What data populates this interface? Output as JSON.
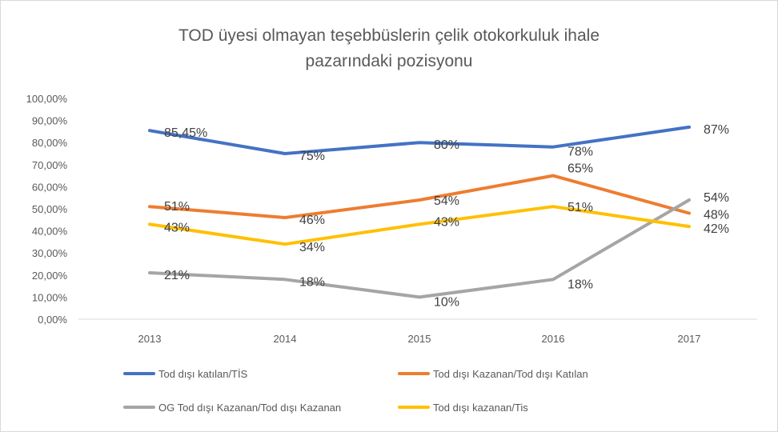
{
  "chart_data": {
    "type": "line",
    "title_lines": [
      "TOD üyesi olmayan teşebbüslerin çelik otokorkuluk ihale",
      "pazarındaki pozisyonu"
    ],
    "categories": [
      "2013",
      "2014",
      "2015",
      "2016",
      "2017"
    ],
    "ylim": [
      0,
      100
    ],
    "yticks": [
      "0,00%",
      "10,00%",
      "20,00%",
      "30,00%",
      "40,00%",
      "50,00%",
      "60,00%",
      "70,00%",
      "80,00%",
      "90,00%",
      "100,00%"
    ],
    "grid": false,
    "legend_position": "bottom",
    "series": [
      {
        "name": "Tod dışı katılan/TİS",
        "color": "#4472C4",
        "values": [
          85.45,
          75,
          80,
          78,
          87
        ],
        "labels": [
          "85,45%",
          "75%",
          "80%",
          "78%",
          "87%"
        ]
      },
      {
        "name": "Tod dışı Kazanan/Tod dışı Katılan",
        "color": "#ED7D31",
        "values": [
          51,
          46,
          54,
          65,
          48
        ],
        "labels": [
          "51%",
          "46%",
          "54%",
          "65%",
          "48%"
        ]
      },
      {
        "name": "OG Tod dışı Kazanan/Tod dışı Kazanan",
        "color": "#A5A5A5",
        "values": [
          21,
          18,
          10,
          18,
          54
        ],
        "labels": [
          "21%",
          "18%",
          "10%",
          "18%",
          "54%"
        ]
      },
      {
        "name": "Tod dışı kazanan/Tis",
        "color": "#FFC000",
        "values": [
          43,
          34,
          43,
          51,
          42
        ],
        "labels": [
          "43%",
          "34%",
          "43%",
          "51%",
          "42%"
        ]
      }
    ]
  }
}
